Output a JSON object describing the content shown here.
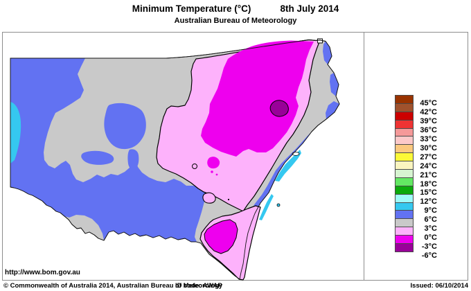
{
  "header": {
    "title": "Minimum Temperature (°C)",
    "date": "8th July 2014",
    "subtitle": "Australian Bureau of Meteorology"
  },
  "map": {
    "url_label": "http://www.bom.gov.au",
    "region_shown": "New South Wales"
  },
  "palette": {
    "gray_0_to_3": "#c9c9c9",
    "blue_3_to_6": "#6272f2",
    "cyan_6_to_9": "#35c8f0",
    "pink_0_to_minus3": "#fdb2fb",
    "magenta_minus3_to_minus6": "#ee00ee",
    "purple_below_minus6": "#990099",
    "lake_white": "#ffffff",
    "contour_black": "#000000"
  },
  "legend": {
    "labels": [
      "45°C",
      "42°C",
      "39°C",
      "36°C",
      "33°C",
      "30°C",
      "27°C",
      "24°C",
      "21°C",
      "18°C",
      "15°C",
      "12°C",
      "9°C",
      "6°C",
      "3°C",
      "0°C",
      "-3°C",
      "-6°C"
    ],
    "swatch_colors": [
      "#993300",
      "#a0522d",
      "#cc0000",
      "#ee3333",
      "#f59999",
      "#fcc9c9",
      "#fbc97f",
      "#fcf937",
      "#faf5c0",
      "#d7f4d1",
      "#63e863",
      "#0baa0b",
      "#a0fcf9",
      "#35c8f0",
      "#6272f2",
      "#c9c9c9",
      "#fdb2fb",
      "#ee00ee",
      "#990099"
    ]
  },
  "footer": {
    "copyright": "© Commonwealth of Australia 2014, Australian Bureau of Meteorology",
    "id_code": "ID code: AWAP",
    "issued": "Issued: 06/10/2014"
  }
}
